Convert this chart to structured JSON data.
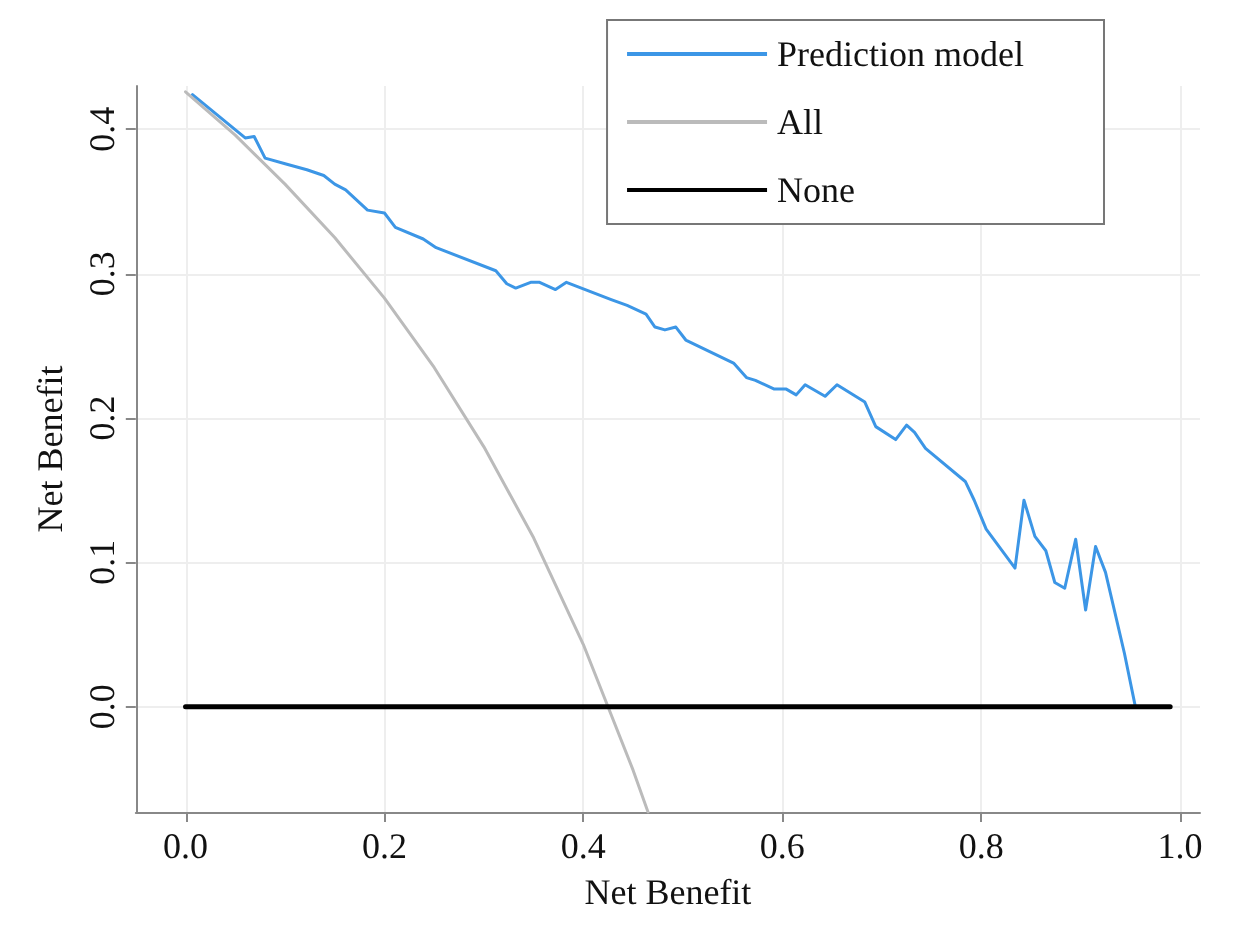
{
  "chart_data": {
    "type": "line",
    "xlabel": "Net Benefit",
    "ylabel": "Net Benefit",
    "xlim": [
      -0.05,
      1.02
    ],
    "ylim": [
      -0.073,
      0.43
    ],
    "xticks": [
      {
        "value": 0,
        "label": "0.0"
      },
      {
        "value": 0.2,
        "label": "0.2"
      },
      {
        "value": 0.4,
        "label": "0.4"
      },
      {
        "value": 0.6,
        "label": "0.6"
      },
      {
        "value": 0.8,
        "label": "0.8"
      },
      {
        "value": 1,
        "label": "1.0"
      }
    ],
    "yticks": [
      {
        "value": 0,
        "label": "0.0"
      },
      {
        "value": 0.1,
        "label": "0.1"
      },
      {
        "value": 0.2,
        "label": "0.2"
      },
      {
        "value": 0.3,
        "label": "0.3"
      },
      {
        "value": 0.4,
        "label": "0.4"
      }
    ],
    "grid": true,
    "legend": "top right",
    "marker": "none",
    "line_style": "solid",
    "series": [
      {
        "name": "Prediction model",
        "color": "#3c96e6",
        "x": [
          0.007,
          0.06,
          0.069,
          0.08,
          0.101,
          0.122,
          0.139,
          0.15,
          0.161,
          0.183,
          0.2,
          0.211,
          0.239,
          0.252,
          0.312,
          0.323,
          0.332,
          0.347,
          0.356,
          0.372,
          0.383,
          0.428,
          0.444,
          0.463,
          0.472,
          0.482,
          0.493,
          0.503,
          0.551,
          0.564,
          0.573,
          0.592,
          0.604,
          0.614,
          0.623,
          0.643,
          0.655,
          0.683,
          0.694,
          0.714,
          0.725,
          0.733,
          0.744,
          0.784,
          0.793,
          0.805,
          0.834,
          0.843,
          0.854,
          0.865,
          0.874,
          0.884,
          0.895,
          0.905,
          0.915,
          0.925,
          0.944,
          0.955
        ],
        "values": [
          0.424,
          0.394,
          0.395,
          0.38,
          0.376,
          0.372,
          0.368,
          0.362,
          0.358,
          0.344,
          0.342,
          0.332,
          0.324,
          0.318,
          0.302,
          0.293,
          0.29,
          0.294,
          0.294,
          0.289,
          0.294,
          0.282,
          0.278,
          0.272,
          0.263,
          0.261,
          0.263,
          0.254,
          0.238,
          0.228,
          0.226,
          0.22,
          0.22,
          0.216,
          0.223,
          0.215,
          0.223,
          0.211,
          0.194,
          0.185,
          0.195,
          0.19,
          0.179,
          0.156,
          0.143,
          0.123,
          0.096,
          0.143,
          0.118,
          0.108,
          0.086,
          0.082,
          0.116,
          0.067,
          0.111,
          0.093,
          0.037,
          0
        ]
      },
      {
        "name": "All",
        "color": "#bbbbbb",
        "x": [
          0,
          0.05,
          0.1,
          0.15,
          0.2,
          0.25,
          0.3,
          0.35,
          0.4,
          0.45,
          0.465
        ],
        "values": [
          0.426,
          0.396,
          0.362,
          0.325,
          0.283,
          0.235,
          0.18,
          0.117,
          0.043,
          -0.044,
          -0.073
        ]
      },
      {
        "name": "None",
        "color": "#000000",
        "x": [
          0,
          0.99
        ],
        "values": [
          0,
          0
        ]
      }
    ]
  }
}
